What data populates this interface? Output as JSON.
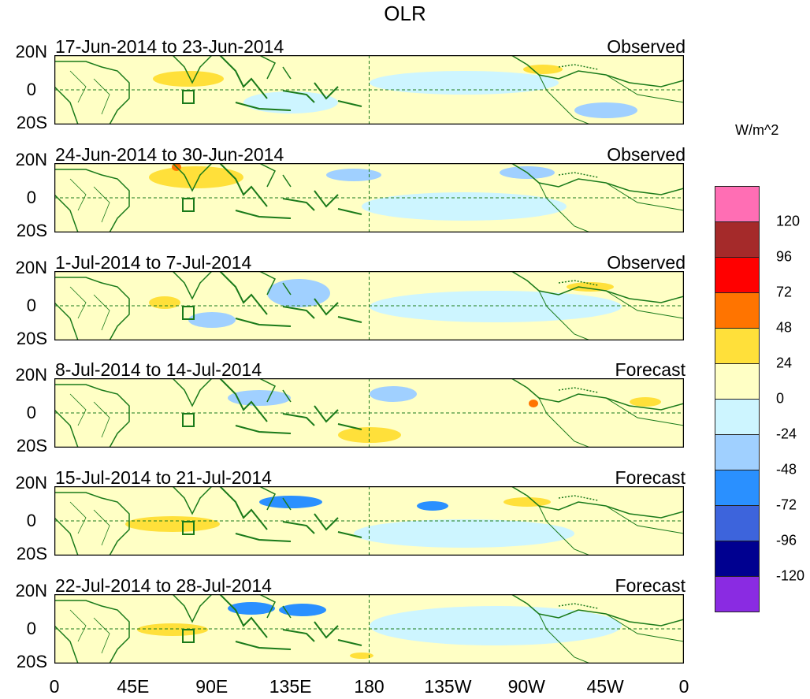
{
  "title": "OLR",
  "panels": [
    {
      "date_range": "17-Jun-2014 to 23-Jun-2014",
      "type": "Observed"
    },
    {
      "date_range": "24-Jun-2014 to 30-Jun-2014",
      "type": "Observed"
    },
    {
      "date_range": "1-Jul-2014 to 7-Jul-2014",
      "type": "Observed"
    },
    {
      "date_range": "8-Jul-2014 to 14-Jul-2014",
      "type": "Forecast"
    },
    {
      "date_range": "15-Jul-2014 to 21-Jul-2014",
      "type": "Forecast"
    },
    {
      "date_range": "22-Jul-2014 to 28-Jul-2014",
      "type": "Forecast"
    }
  ],
  "lat_labels": [
    "20N",
    "0",
    "20S"
  ],
  "lon_labels": [
    "0",
    "45E",
    "90E",
    "135E",
    "180",
    "135W",
    "90W",
    "45W",
    "0"
  ],
  "colorbar": {
    "units": "W/m^2",
    "colors": [
      "#ff6eb4",
      "#a52a2a",
      "#ff0000",
      "#ff7400",
      "#ffe03a",
      "#ffffc5",
      "#cdf5ff",
      "#a0d0ff",
      "#2a90ff",
      "#3d64dc",
      "#000090",
      "#8a2be2"
    ],
    "labels": [
      "120",
      "96",
      "72",
      "48",
      "24",
      "0",
      "-24",
      "-48",
      "-72",
      "-96",
      "-120"
    ]
  },
  "colors": {
    "land_outline": "#1a7a1a",
    "background": "#ffffc5"
  }
}
